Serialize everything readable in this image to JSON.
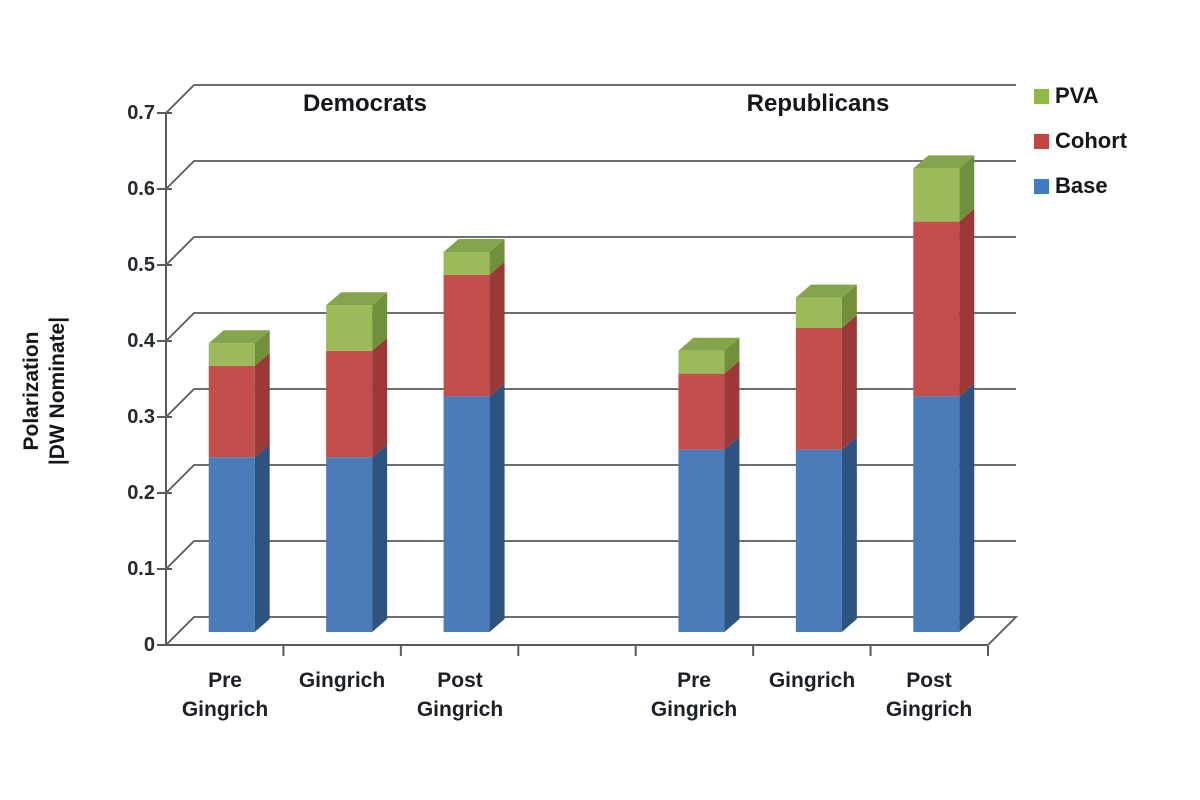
{
  "chart_data": {
    "type": "bar",
    "stacked": true,
    "title": "",
    "ylabel_line1": "Polarization",
    "ylabel_line2": "|DW Nominate|",
    "group_titles": [
      "Democrats",
      "Republicans"
    ],
    "categories": [
      "Pre Gingrich",
      "Gingrich",
      "Post Gingrich",
      "Pre Gingrich",
      "Gingrich",
      "Post Gingrich"
    ],
    "x_labels": [
      {
        "line1": "Pre",
        "line2": "Gingrich"
      },
      {
        "line1": "Gingrich",
        "line2": ""
      },
      {
        "line1": "Post",
        "line2": "Gingrich"
      },
      {
        "line1": "Pre",
        "line2": "Gingrich"
      },
      {
        "line1": "Gingrich",
        "line2": ""
      },
      {
        "line1": "Post",
        "line2": "Gingrich"
      }
    ],
    "series": [
      {
        "name": "Base",
        "color": "#4A7CBA",
        "side_color": "#2F5380",
        "top_color": "#3A689E",
        "values": [
          0.23,
          0.23,
          0.31,
          0.24,
          0.24,
          0.31
        ]
      },
      {
        "name": "Cohort",
        "color": "#C24F4B",
        "side_color": "#9A3936",
        "top_color": "#A9423E",
        "values": [
          0.12,
          0.14,
          0.16,
          0.1,
          0.16,
          0.23
        ]
      },
      {
        "name": "PVA",
        "color": "#9CBA59",
        "side_color": "#71903B",
        "top_color": "#84A54B",
        "values": [
          0.03,
          0.06,
          0.03,
          0.03,
          0.04,
          0.07
        ]
      }
    ],
    "totals": [
      0.38,
      0.43,
      0.5,
      0.37,
      0.44,
      0.61
    ],
    "legend": [
      {
        "label": "PVA",
        "color": "#8CBA45"
      },
      {
        "label": "Cohort",
        "color": "#C24440"
      },
      {
        "label": "Base",
        "color": "#407CC2"
      }
    ],
    "legend_position": "top-right",
    "y_ticks": [
      "0.7",
      "0.6",
      "0.5",
      "0.4",
      "0.3",
      "0.2",
      "0.1",
      "0"
    ],
    "ylim": [
      0,
      0.7
    ],
    "grid": true,
    "style": "3d-stacked-column",
    "grid_color": "#5a5a5a"
  }
}
